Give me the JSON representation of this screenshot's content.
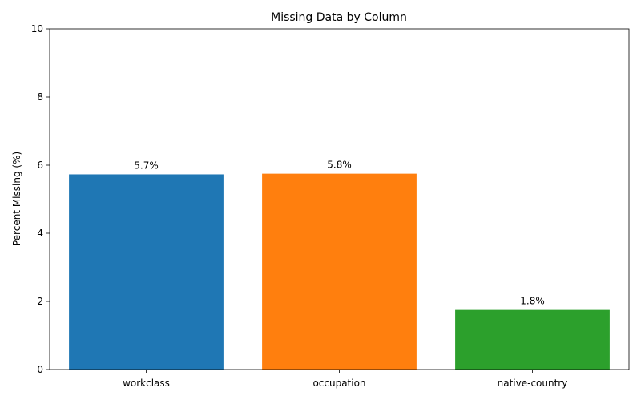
{
  "chart_data": {
    "type": "bar",
    "title": "Missing Data by Column",
    "xlabel": "",
    "ylabel": "Percent Missing (%)",
    "categories": [
      "workclass",
      "occupation",
      "native-country"
    ],
    "values": [
      5.73,
      5.75,
      1.75
    ],
    "data_labels": [
      "5.7%",
      "5.8%",
      "1.8%"
    ],
    "colors": [
      "#1f77b4",
      "#ff7f0e",
      "#2ca02c"
    ],
    "ylim": [
      0,
      10
    ],
    "yticks": [
      0,
      2,
      4,
      6,
      8,
      10
    ],
    "grid": false,
    "legend": "none"
  }
}
